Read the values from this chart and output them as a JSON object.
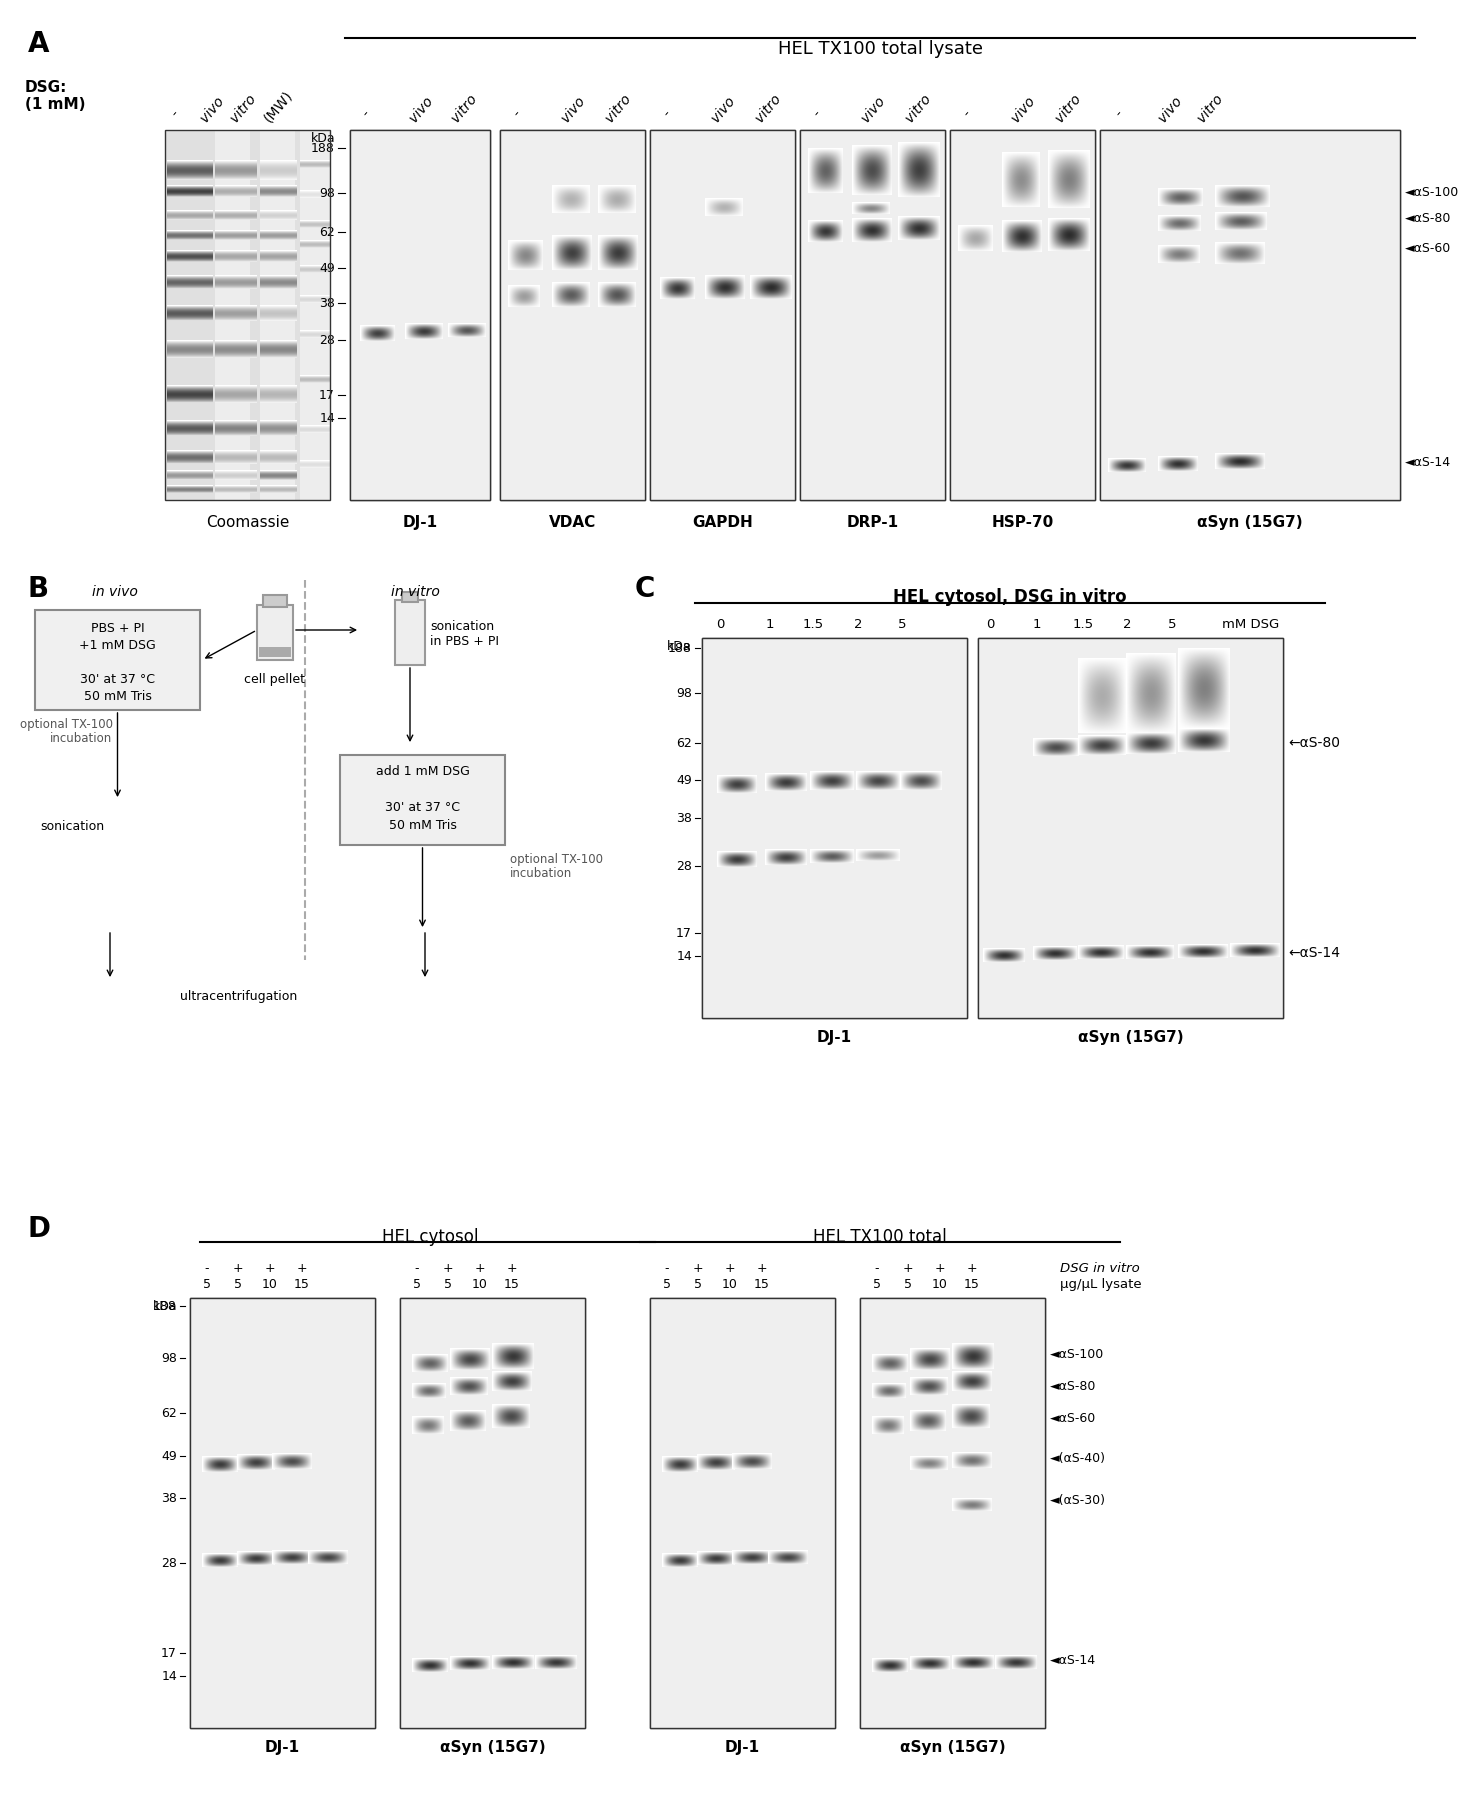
{
  "background_color": "#ffffff",
  "panel_A": {
    "label": "A",
    "title": "HEL TX100 total lysate",
    "dsg_label": "DSG:\n(1 mM)",
    "blot_labels": [
      "Coomassie",
      "DJ-1",
      "VDAC",
      "GAPDH",
      "DRP-1",
      "HSP-70",
      "αSyn (15G7)"
    ],
    "kda_vals": [
      "188",
      "98",
      "62",
      "49",
      "38",
      "28",
      "17",
      "14"
    ],
    "right_labels": [
      "←αS-100",
      "←αS-80",
      "←αS-60",
      "←αS-14"
    ]
  },
  "panel_B": {
    "label": "B",
    "box1_text": "PBS + PI\n+1 mM DSG\n\n30’ at 37 °C\n50 mM Tris",
    "box2_text": "add 1 mM DSG\n\n30’ at 37 °C\n50 mM Tris"
  },
  "panel_C": {
    "label": "C",
    "title": "HEL cytosol, DSG in vitro",
    "kda_vals": [
      "188",
      "98",
      "62",
      "49",
      "38",
      "28",
      "17",
      "14"
    ],
    "right_labels": [
      "←αS-80",
      "←αS-14"
    ]
  },
  "panel_D": {
    "label": "D",
    "title_left": "HEL cytosol",
    "title_right": "HEL TX100 total",
    "kda_vals": [
      "188",
      "98",
      "62",
      "49",
      "38",
      "28",
      "17",
      "14"
    ],
    "right_labels": [
      "←αS-100",
      "←αS-80",
      "←αS-60",
      "←(αS-40)",
      "←(αS-30)",
      "←αS-14"
    ]
  }
}
